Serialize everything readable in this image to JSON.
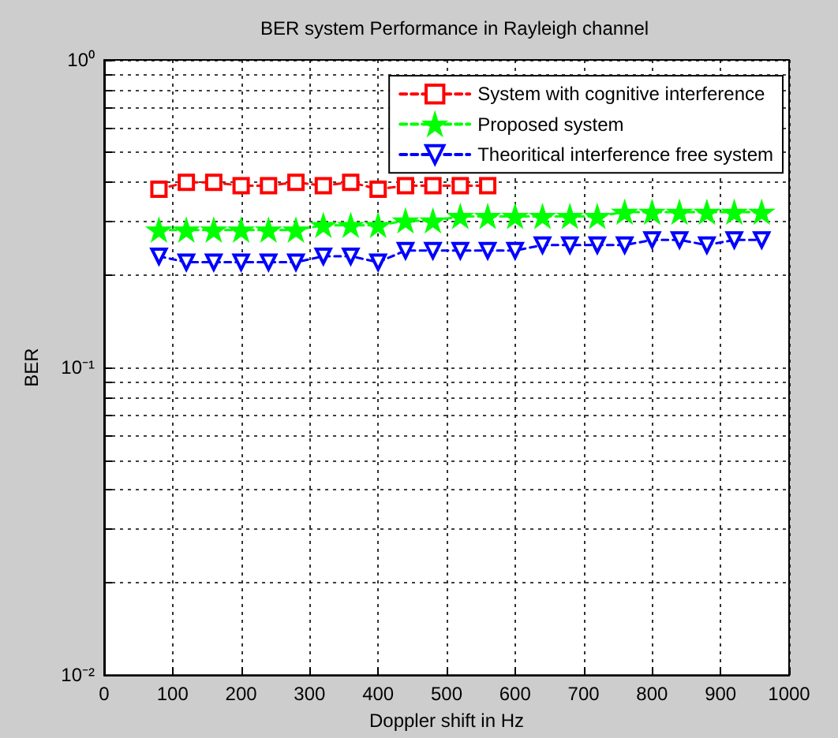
{
  "chart_data": {
    "type": "line",
    "title": "BER system Performance in Rayleigh channel",
    "xlabel": "Doppler shift in Hz",
    "ylabel": "BER",
    "x": [
      80,
      120,
      160,
      200,
      240,
      280,
      320,
      360,
      400,
      440,
      480,
      520,
      560,
      600,
      640,
      680,
      720,
      760,
      800,
      840,
      880,
      920,
      960
    ],
    "series": [
      {
        "name": "System with cognitive interference",
        "color": "#ff0000",
        "marker": "square",
        "x": [
          80,
          120,
          160,
          200,
          240,
          280,
          320,
          360,
          400,
          440,
          480,
          520,
          560
        ],
        "values": [
          0.38,
          0.4,
          0.4,
          0.39,
          0.39,
          0.4,
          0.39,
          0.4,
          0.38,
          0.39,
          0.39,
          0.39,
          0.39
        ]
      },
      {
        "name": "Proposed system",
        "color": "#00ff00",
        "marker": "star",
        "values": [
          0.28,
          0.28,
          0.28,
          0.28,
          0.28,
          0.28,
          0.29,
          0.29,
          0.29,
          0.3,
          0.3,
          0.31,
          0.31,
          0.31,
          0.31,
          0.31,
          0.31,
          0.32,
          0.32,
          0.32,
          0.32,
          0.32,
          0.32
        ]
      },
      {
        "name": "Theoritical interference free system",
        "color": "#0000ff",
        "marker": "triangle",
        "values": [
          0.23,
          0.22,
          0.22,
          0.22,
          0.22,
          0.22,
          0.23,
          0.23,
          0.22,
          0.24,
          0.24,
          0.24,
          0.24,
          0.24,
          0.25,
          0.25,
          0.25,
          0.25,
          0.26,
          0.26,
          0.25,
          0.26,
          0.26
        ]
      }
    ],
    "line_style": "dashed",
    "log": "y",
    "grid": true,
    "legend": "top right",
    "xlim": [
      0,
      1000
    ],
    "xticks": [
      0,
      100,
      200,
      300,
      400,
      500,
      600,
      700,
      800,
      900,
      1000
    ],
    "ylim": [
      0.01,
      1
    ],
    "yticks": [
      {
        "value": 0.01,
        "label": "10⁻²"
      },
      {
        "value": 0.02,
        "label": null
      },
      {
        "value": 0.03,
        "label": null
      },
      {
        "value": 0.04,
        "label": null
      },
      {
        "value": 0.05,
        "label": null
      },
      {
        "value": 0.06,
        "label": null
      },
      {
        "value": 0.07,
        "label": null
      },
      {
        "value": 0.08,
        "label": null
      },
      {
        "value": 0.09,
        "label": null
      },
      {
        "value": 0.1,
        "label": "10⁻¹"
      },
      {
        "value": 0.2,
        "label": null
      },
      {
        "value": 0.3,
        "label": null
      },
      {
        "value": 0.4,
        "label": null
      },
      {
        "value": 0.5,
        "label": null
      },
      {
        "value": 0.6,
        "label": null
      },
      {
        "value": 0.7,
        "label": null
      },
      {
        "value": 0.8,
        "label": null
      },
      {
        "value": 0.9,
        "label": null
      },
      {
        "value": 1,
        "label": "10⁰"
      }
    ]
  }
}
